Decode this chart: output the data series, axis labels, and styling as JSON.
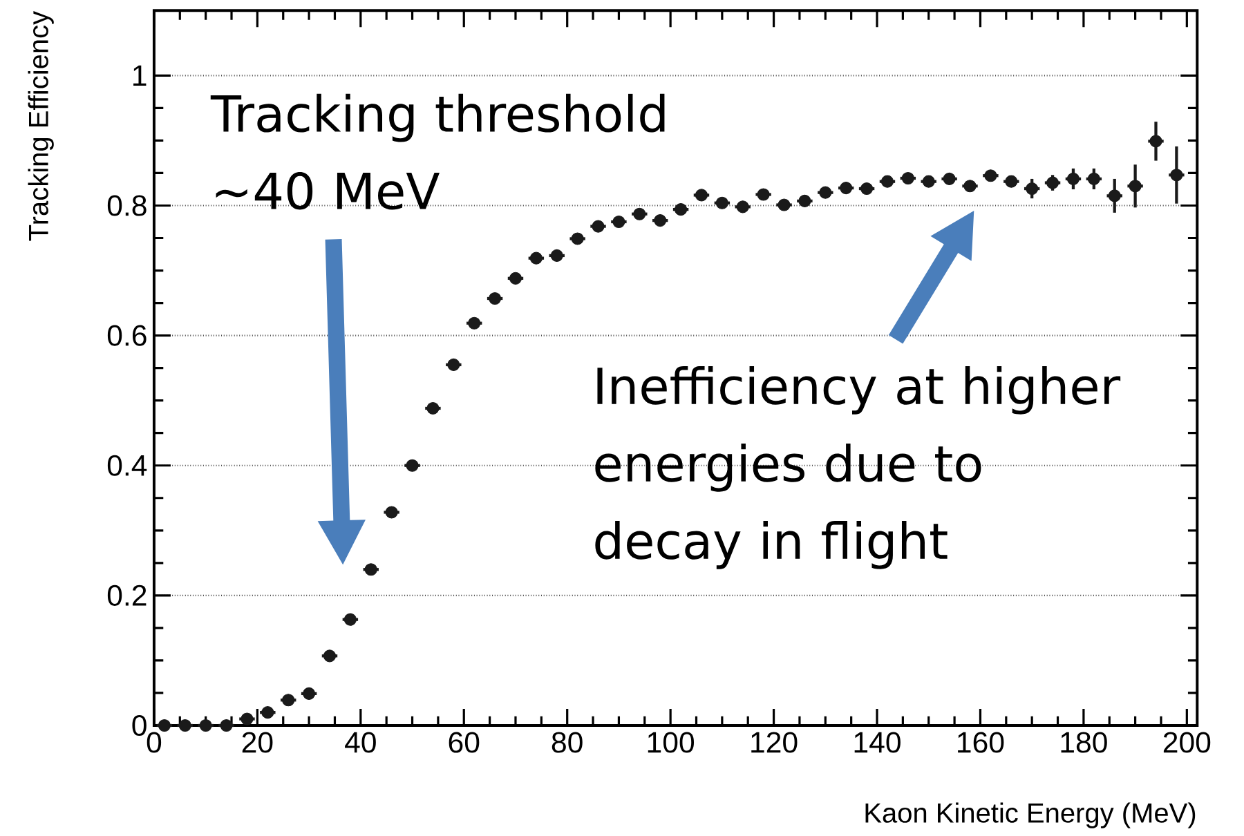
{
  "chart_data": {
    "type": "scatter",
    "xlabel": "Kaon Kinetic Energy (MeV)",
    "ylabel": "Tracking Efficiency",
    "x": [
      2,
      6,
      10,
      14,
      18,
      22,
      26,
      30,
      34,
      38,
      42,
      46,
      50,
      54,
      58,
      62,
      66,
      70,
      74,
      78,
      82,
      86,
      90,
      94,
      98,
      102,
      106,
      110,
      114,
      118,
      122,
      126,
      130,
      134,
      138,
      142,
      146,
      150,
      154,
      158,
      162,
      166,
      170,
      174,
      178,
      182,
      186,
      190,
      194,
      198
    ],
    "values": [
      0.0,
      0.0,
      0.0,
      0.0,
      0.01,
      0.02,
      0.039,
      0.049,
      0.107,
      0.163,
      0.24,
      0.328,
      0.4,
      0.488,
      0.555,
      0.619,
      0.657,
      0.688,
      0.719,
      0.723,
      0.749,
      0.768,
      0.775,
      0.787,
      0.777,
      0.794,
      0.816,
      0.804,
      0.798,
      0.817,
      0.801,
      0.807,
      0.82,
      0.827,
      0.826,
      0.837,
      0.842,
      0.837,
      0.841,
      0.83,
      0.846,
      0.837,
      0.826,
      0.835,
      0.841,
      0.841,
      0.815,
      0.83,
      0.899,
      0.847
    ],
    "errors": [
      null,
      null,
      null,
      null,
      null,
      null,
      null,
      null,
      null,
      null,
      null,
      null,
      null,
      null,
      null,
      null,
      null,
      null,
      null,
      null,
      null,
      null,
      null,
      null,
      null,
      null,
      null,
      null,
      null,
      null,
      null,
      null,
      null,
      null,
      null,
      null,
      null,
      null,
      null,
      null,
      null,
      null,
      0.015,
      0.012,
      0.016,
      0.016,
      0.026,
      0.033,
      0.03,
      0.044
    ],
    "xerrors": [
      1.5,
      1.5,
      1.5,
      1.5,
      1.5,
      1.5,
      1.5,
      1.5,
      1.5,
      1.5,
      1.5,
      1.5,
      1.5,
      1.5,
      1.5,
      1.5,
      1.5,
      1.5,
      1.5,
      1.5,
      1.5,
      1.5,
      1.5,
      1.5,
      1.5,
      1.5,
      1.5,
      1.5,
      1.5,
      1.5,
      1.5,
      1.5,
      1.5,
      1.5,
      1.5,
      1.5,
      1.5,
      1.5,
      1.5,
      1.5,
      1.5,
      1.5,
      1.5,
      1.5,
      1.5,
      1.5,
      1.5,
      1.5,
      1.5,
      1.5
    ],
    "color": "#1a1a1a",
    "xlim": [
      0,
      202
    ],
    "ylim": [
      0,
      1.1
    ],
    "xticks": [
      0,
      20,
      40,
      60,
      80,
      100,
      120,
      140,
      160,
      180,
      200
    ],
    "yticks": [
      0,
      0.2,
      0.4,
      0.6,
      0.8,
      1
    ],
    "grid": "y",
    "annotations": [
      "Tracking threshold ~40 MeV",
      "Inefficiency at higher energies due to decay in flight"
    ]
  }
}
